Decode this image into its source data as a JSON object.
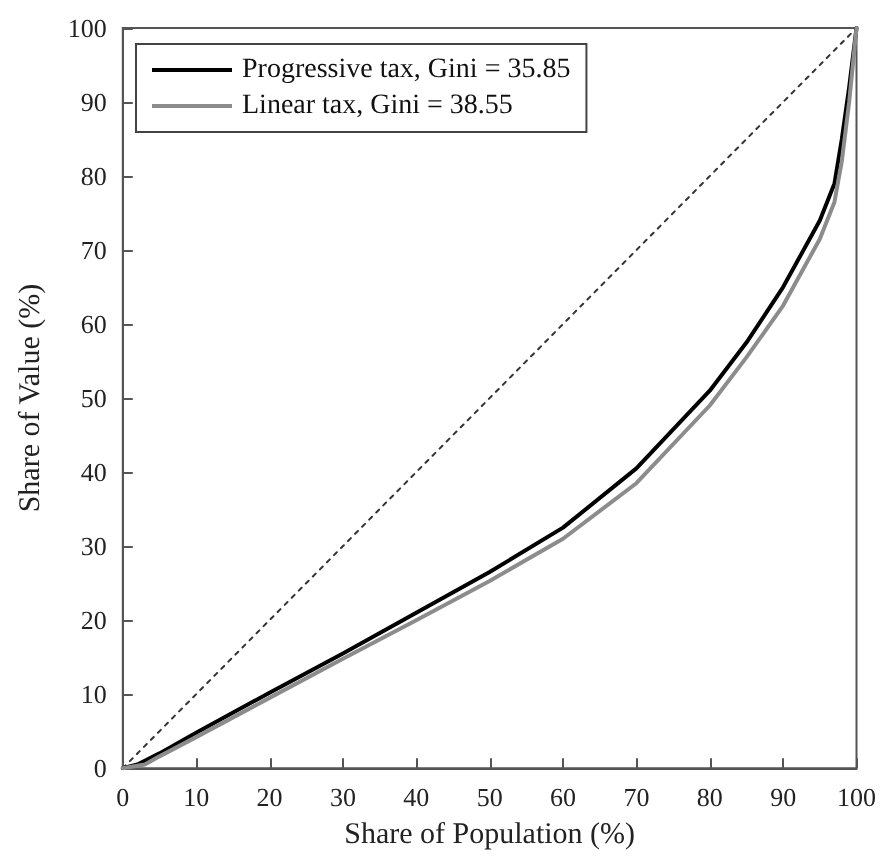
{
  "chart_data": {
    "type": "line",
    "xlabel": "Share of Population (%)",
    "ylabel": "Share of Value (%)",
    "xlim": [
      0,
      100
    ],
    "ylim": [
      0,
      100
    ],
    "xticks": [
      0,
      10,
      20,
      30,
      40,
      50,
      60,
      70,
      80,
      90,
      100
    ],
    "yticks": [
      0,
      10,
      20,
      30,
      40,
      50,
      60,
      70,
      80,
      90,
      100
    ],
    "grid": false,
    "legend": "top left",
    "marker": "none",
    "series": [
      {
        "name": "Progressive tax, Gini = 35.85",
        "color": "#000000",
        "x": [
          0,
          2,
          5,
          10,
          20,
          30,
          40,
          50,
          60,
          70,
          80,
          85,
          90,
          95,
          97,
          98,
          99,
          100
        ],
        "values": [
          0,
          0.5,
          2,
          4.8,
          10.2,
          15.5,
          21,
          26.5,
          32.5,
          40.5,
          51,
          57.5,
          65,
          74,
          79,
          85,
          92,
          100
        ]
      },
      {
        "name": "Linear tax, Gini = 38.55",
        "color": "#8c8c8c",
        "x": [
          0,
          3,
          5,
          10,
          20,
          30,
          40,
          50,
          60,
          70,
          80,
          85,
          90,
          95,
          97,
          98,
          99,
          100
        ],
        "values": [
          0,
          0.5,
          1.6,
          4.2,
          9.5,
          14.8,
          20,
          25.3,
          31,
          38.5,
          49,
          55.5,
          62.5,
          71.5,
          76.5,
          82,
          90,
          100
        ]
      },
      {
        "color": "#333333",
        "line_style": "dotted",
        "x": [
          0,
          100
        ],
        "values": [
          0,
          100
        ]
      }
    ]
  }
}
